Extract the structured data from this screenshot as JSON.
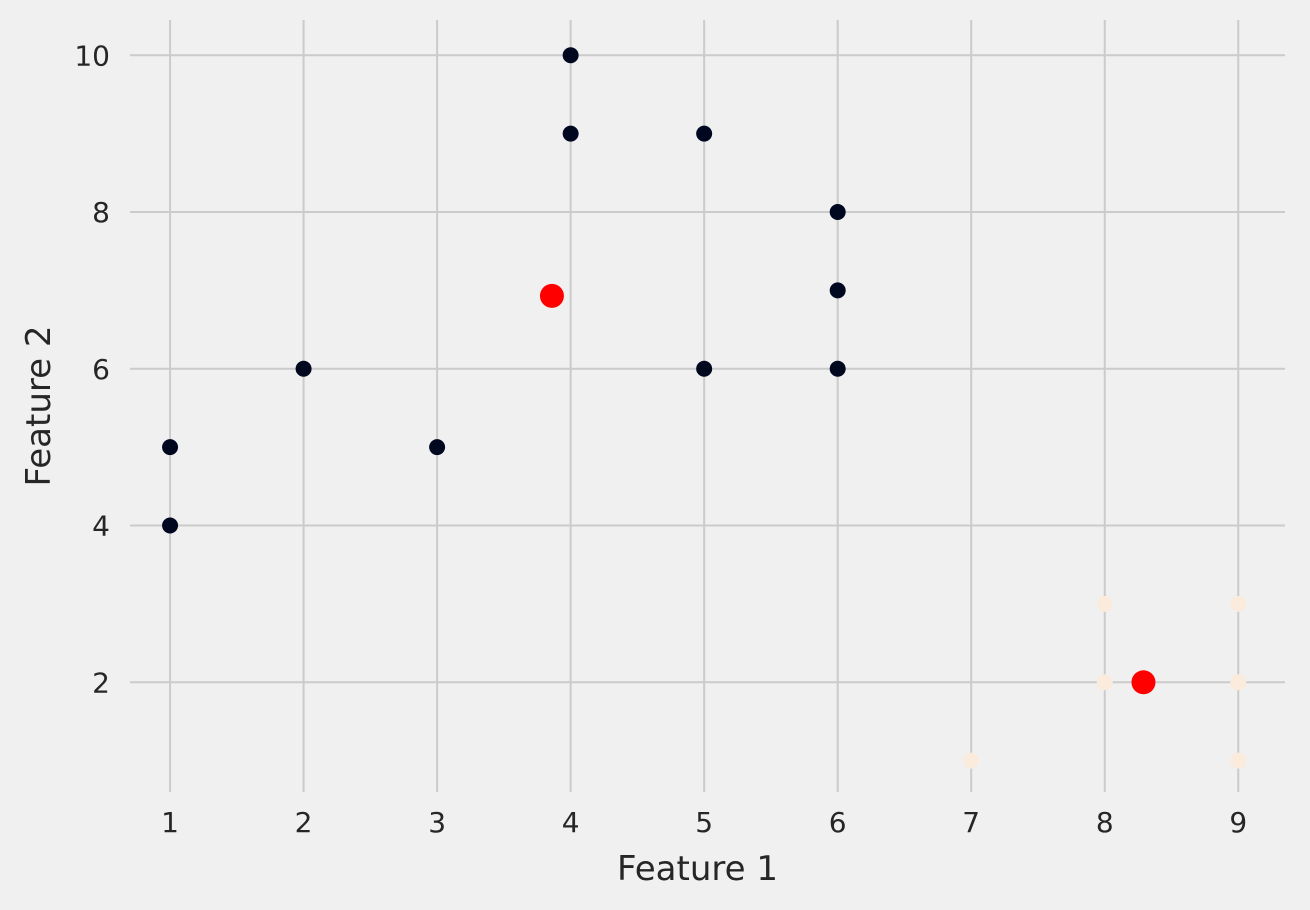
{
  "chart_data": {
    "type": "scatter",
    "title": "",
    "xlabel": "Feature 1",
    "ylabel": "Feature 2",
    "xlim": [
      0.7,
      9.35
    ],
    "ylim": [
      0.6,
      10.45
    ],
    "xticks": [
      1,
      2,
      3,
      4,
      5,
      6,
      7,
      8,
      9
    ],
    "yticks": [
      2,
      4,
      6,
      8,
      10
    ],
    "grid": true,
    "background_color": "#f0f0f0",
    "grid_color": "#cbcbcb",
    "series": [
      {
        "color": "#000820",
        "points": [
          [
            1,
            5
          ],
          [
            1,
            4
          ],
          [
            2,
            6
          ],
          [
            3,
            5
          ],
          [
            4,
            10
          ],
          [
            4,
            9
          ],
          [
            5,
            9
          ],
          [
            5,
            6
          ],
          [
            6,
            8
          ],
          [
            6,
            7
          ],
          [
            6,
            6
          ]
        ]
      },
      {
        "color": "#fbebdd",
        "points": [
          [
            7,
            1
          ],
          [
            8,
            3
          ],
          [
            8,
            2
          ],
          [
            9,
            3
          ],
          [
            9,
            2
          ],
          [
            9,
            1
          ]
        ]
      },
      {
        "color": "#ff0000",
        "marker": "large",
        "points": [
          [
            3.86,
            6.93
          ],
          [
            8.29,
            2.0
          ]
        ]
      }
    ]
  }
}
